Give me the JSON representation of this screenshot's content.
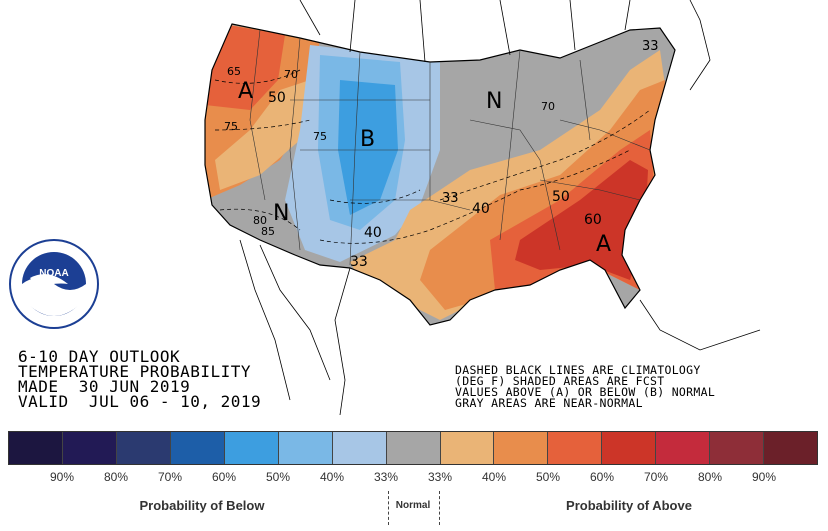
{
  "title_block": {
    "line1": "6-10 DAY OUTLOOK",
    "line2": "TEMPERATURE PROBABILITY",
    "line3": "MADE  30 JUN 2019",
    "line4": "VALID  JUL 06 - 10, 2019"
  },
  "notes": {
    "line1": "DASHED BLACK LINES ARE CLIMATOLOGY",
    "line2": "(DEG F) SHADED AREAS ARE FCST",
    "line3": "VALUES ABOVE (A) OR BELOW (B) NORMAL",
    "line4": "GRAY AREAS ARE NEAR-NORMAL"
  },
  "logo": {
    "text": "NOAA",
    "icon": "noaa-logo"
  },
  "map_labels": {
    "A_west": "A",
    "B_center": "B",
    "N_midwest": "N",
    "N_southwest": "N",
    "A_southeast": "A",
    "c_65": "65",
    "c_70": "70",
    "c_50_w": "50",
    "c_75": "75",
    "c_75b": "75",
    "c_80": "80",
    "c_85": "85",
    "c_40_w": "40",
    "c_33_w": "33",
    "c_33_c": "33",
    "c_40_c": "40",
    "c_50_e": "50",
    "c_60": "60",
    "c_70_ne": "70",
    "c_33_ne": "33"
  },
  "legend": {
    "colors": [
      "#1c1640",
      "#221a55",
      "#2b3a70",
      "#1d5ea8",
      "#3d9ee0",
      "#7ab8e6",
      "#a7c6e6",
      "#a6a6a6",
      "#eab476",
      "#e88d4c",
      "#e5613b",
      "#cc3528",
      "#c42b3c",
      "#8e2e38",
      "#6b2029"
    ],
    "ticks": [
      "90%",
      "80%",
      "70%",
      "60%",
      "50%",
      "40%",
      "33%",
      "33%",
      "40%",
      "50%",
      "60%",
      "70%",
      "80%",
      "90%"
    ],
    "below_label": "Probability of Below",
    "normal_label": "Normal",
    "above_label": "Probability of Above"
  }
}
